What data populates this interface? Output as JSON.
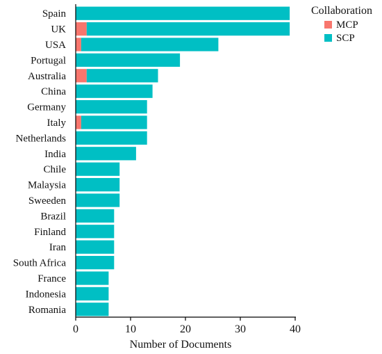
{
  "chart_data": {
    "type": "bar",
    "orientation": "horizontal",
    "stacked": true,
    "categories": [
      "Spain",
      "UK",
      "USA",
      "Portugal",
      "Australia",
      "China",
      "Germany",
      "Italy",
      "Netherlands",
      "India",
      "Chile",
      "Malaysia",
      "Sweeden",
      "Brazil",
      "Finland",
      "Iran",
      "South Africa",
      "France",
      "Indonesia",
      "Romania"
    ],
    "series": [
      {
        "name": "MCP",
        "color": "#f8766d",
        "values": [
          0,
          2,
          1,
          0,
          2,
          0,
          0,
          1,
          0,
          0,
          0,
          0,
          0,
          0,
          0,
          0,
          0,
          0,
          0,
          0
        ]
      },
      {
        "name": "SCP",
        "color": "#00bfc4",
        "values": [
          39,
          37,
          25,
          19,
          13,
          14,
          13,
          12,
          13,
          11,
          8,
          8,
          8,
          7,
          7,
          7,
          7,
          6,
          6,
          6
        ]
      }
    ],
    "xlabel": "Number of Documents",
    "ylabel": "",
    "xlim": [
      0,
      40
    ],
    "xticks": [
      0,
      10,
      20,
      30,
      40
    ],
    "grid": false,
    "legend": {
      "title": "Collaboration",
      "position": "top-right"
    }
  }
}
